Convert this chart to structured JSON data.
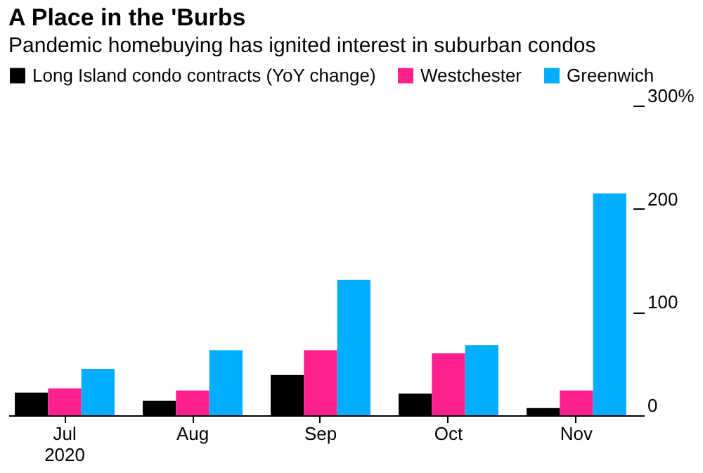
{
  "chart_data": {
    "type": "bar",
    "title": "A Place in the 'Burbs",
    "subtitle": "Pandemic homebuying has ignited interest in suburban condos",
    "categories": [
      "Jul\n2020",
      "Aug",
      "Sep",
      "Oct",
      "Nov"
    ],
    "series": [
      {
        "name": "Long Island condo contracts (YoY change)",
        "color": "#000000",
        "values": [
          22,
          14,
          39,
          21,
          7
        ]
      },
      {
        "name": "Westchester",
        "color": "#ff1f8e",
        "values": [
          26,
          24,
          63,
          60,
          24
        ]
      },
      {
        "name": "Greenwich",
        "color": "#00adff",
        "values": [
          45,
          63,
          131,
          68,
          215
        ]
      }
    ],
    "ylim": [
      0,
      300
    ],
    "yticks": [
      0,
      100,
      200,
      {
        "value": 300,
        "label": "300%"
      }
    ],
    "grid": false,
    "legend": "top"
  }
}
